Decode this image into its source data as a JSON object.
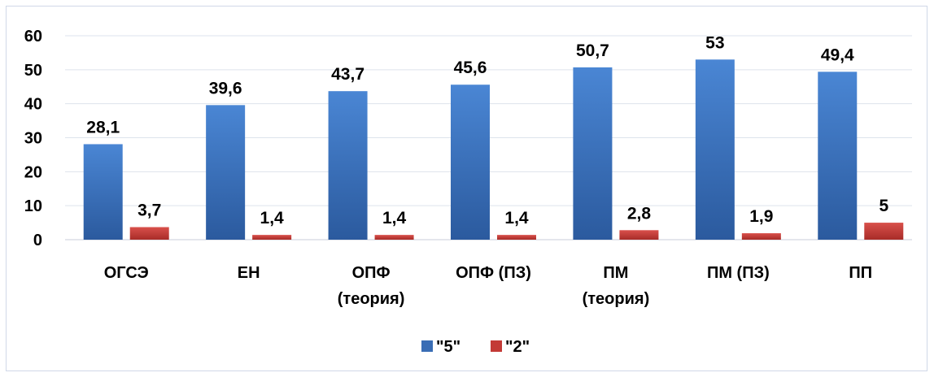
{
  "chart_data": {
    "type": "bar",
    "categories": [
      [
        "ОГСЭ"
      ],
      [
        "ЕН"
      ],
      [
        "ОПФ",
        "(теория)"
      ],
      [
        "ОПФ (ПЗ)"
      ],
      [
        "ПМ",
        "(теория)"
      ],
      [
        "ПМ (ПЗ)"
      ],
      [
        "ПП"
      ]
    ],
    "series": [
      {
        "name": "\"5\"",
        "color": "#3a6db5",
        "values": [
          28.1,
          39.6,
          43.7,
          45.6,
          50.7,
          53,
          49.4
        ],
        "labels": [
          "28,1",
          "39,6",
          "43,7",
          "45,6",
          "50,7",
          "53",
          "49,4"
        ]
      },
      {
        "name": "\"2\"",
        "color": "#c33a36",
        "values": [
          3.7,
          1.4,
          1.4,
          1.4,
          2.8,
          1.9,
          5
        ],
        "labels": [
          "3,7",
          "1,4",
          "1,4",
          "1,4",
          "2,8",
          "1,9",
          "5"
        ]
      }
    ],
    "ylim": [
      0,
      60
    ],
    "yticks": [
      "0",
      "10",
      "20",
      "30",
      "40",
      "50",
      "60"
    ],
    "grid": true,
    "legend_position": "bottom"
  }
}
